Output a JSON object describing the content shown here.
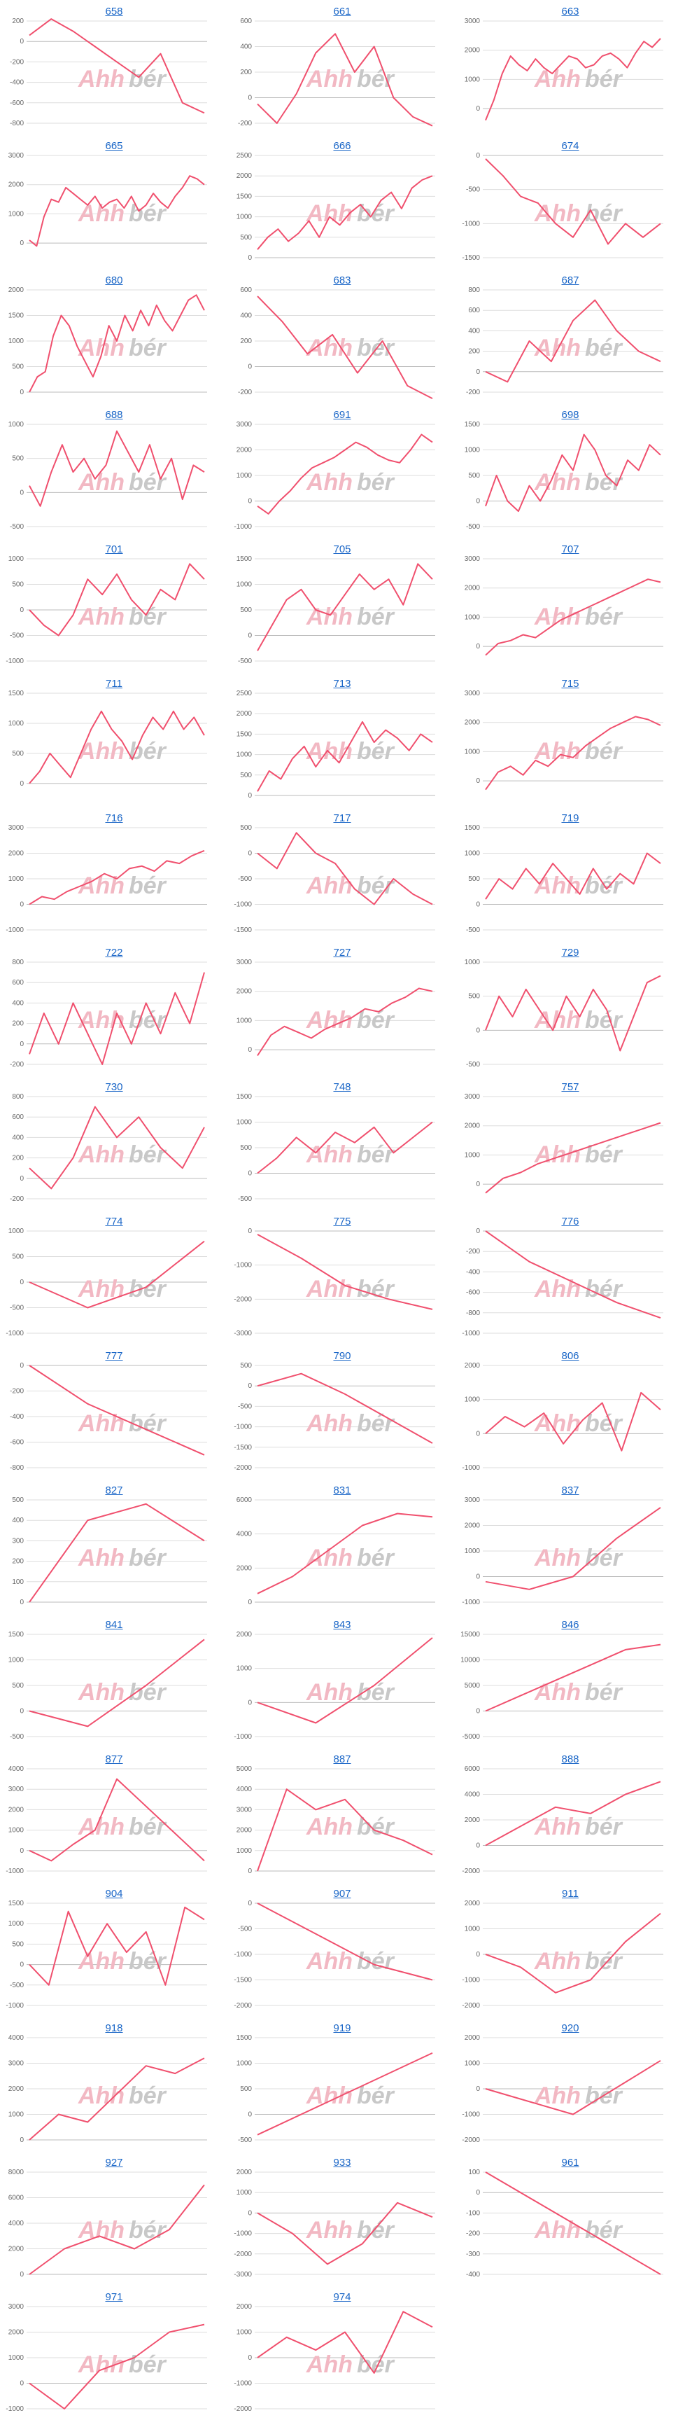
{
  "style": {
    "line_color": "#f0506e",
    "title_color": "#1a66c7",
    "grid_color": "#dddddd",
    "zero_color": "#bbbbbb",
    "watermark_left_color": "#f2b8c3",
    "watermark_right_color": "#c8c8c8"
  },
  "watermark": {
    "left": "Ahh",
    "right": "bér"
  },
  "chart_data": [
    {
      "type": "line",
      "title": "658",
      "yticks": [
        200,
        0,
        -200,
        -400,
        -600,
        -800
      ],
      "ylim": [
        -800,
        200
      ],
      "values": [
        60,
        220,
        100,
        -50,
        -200,
        -350,
        -120,
        -600,
        -700
      ]
    },
    {
      "type": "line",
      "title": "661",
      "yticks": [
        600,
        400,
        200,
        0,
        -200
      ],
      "ylim": [
        -200,
        600
      ],
      "values": [
        -50,
        -200,
        30,
        350,
        500,
        200,
        400,
        0,
        -150,
        -220
      ]
    },
    {
      "type": "line",
      "title": "663",
      "yticks": [
        3000,
        2000,
        1000,
        0
      ],
      "ylim": [
        -500,
        3000
      ],
      "values": [
        -400,
        300,
        1200,
        1800,
        1500,
        1300,
        1700,
        1400,
        1200,
        1500,
        1800,
        1700,
        1400,
        1500,
        1800,
        1900,
        1700,
        1400,
        1900,
        2300,
        2100,
        2400
      ]
    },
    {
      "type": "line",
      "title": "665",
      "yticks": [
        3000,
        2000,
        1000,
        0
      ],
      "ylim": [
        -500,
        3000
      ],
      "values": [
        100,
        -100,
        900,
        1500,
        1400,
        1900,
        1700,
        1500,
        1300,
        1600,
        1200,
        1400,
        1500,
        1200,
        1600,
        1100,
        1300,
        1700,
        1400,
        1200,
        1600,
        1900,
        2300,
        2200,
        2000
      ]
    },
    {
      "type": "line",
      "title": "666",
      "yticks": [
        2500,
        2000,
        1500,
        1000,
        500,
        0
      ],
      "ylim": [
        0,
        2500
      ],
      "values": [
        200,
        500,
        700,
        400,
        600,
        900,
        500,
        1000,
        800,
        1100,
        1300,
        1000,
        1400,
        1600,
        1200,
        1700,
        1900,
        2000
      ]
    },
    {
      "type": "line",
      "title": "674",
      "yticks": [
        0,
        -500,
        -1000,
        -1500
      ],
      "ylim": [
        -1500,
        0
      ],
      "values": [
        -50,
        -300,
        -600,
        -700,
        -1000,
        -1200,
        -800,
        -1300,
        -1000,
        -1200,
        -1000
      ]
    },
    {
      "type": "line",
      "title": "680",
      "yticks": [
        2000,
        1500,
        1000,
        500,
        0
      ],
      "ylim": [
        0,
        2000
      ],
      "values": [
        0,
        300,
        400,
        1100,
        1500,
        1300,
        900,
        600,
        300,
        700,
        1300,
        1000,
        1500,
        1200,
        1600,
        1300,
        1700,
        1400,
        1200,
        1500,
        1800,
        1900,
        1600
      ]
    },
    {
      "type": "line",
      "title": "683",
      "yticks": [
        600,
        400,
        200,
        0,
        -200
      ],
      "ylim": [
        -200,
        600
      ],
      "values": [
        550,
        350,
        100,
        250,
        -50,
        200,
        -150,
        -250
      ]
    },
    {
      "type": "line",
      "title": "687",
      "yticks": [
        800,
        600,
        400,
        200,
        0,
        -200
      ],
      "ylim": [
        -200,
        800
      ],
      "values": [
        0,
        -100,
        300,
        100,
        500,
        700,
        400,
        200,
        100
      ]
    },
    {
      "type": "line",
      "title": "688",
      "yticks": [
        1000,
        500,
        0,
        -500
      ],
      "ylim": [
        -500,
        1000
      ],
      "values": [
        100,
        -200,
        300,
        700,
        300,
        500,
        200,
        400,
        900,
        600,
        300,
        700,
        200,
        500,
        -100,
        400,
        300
      ]
    },
    {
      "type": "line",
      "title": "691",
      "yticks": [
        3000,
        2000,
        1000,
        0,
        -1000
      ],
      "ylim": [
        -1000,
        3000
      ],
      "values": [
        -200,
        -500,
        0,
        400,
        900,
        1300,
        1500,
        1700,
        2000,
        2300,
        2100,
        1800,
        1600,
        1500,
        2000,
        2600,
        2300
      ]
    },
    {
      "type": "line",
      "title": "698",
      "yticks": [
        1500,
        1000,
        500,
        0,
        -500
      ],
      "ylim": [
        -500,
        1500
      ],
      "values": [
        -100,
        500,
        0,
        -200,
        300,
        0,
        400,
        900,
        600,
        1300,
        1000,
        500,
        300,
        800,
        600,
        1100,
        900
      ]
    },
    {
      "type": "line",
      "title": "701",
      "yticks": [
        1000,
        500,
        0,
        -500,
        -1000
      ],
      "ylim": [
        -1000,
        1000
      ],
      "values": [
        0,
        -300,
        -500,
        -100,
        600,
        300,
        700,
        200,
        -100,
        400,
        200,
        900,
        600
      ]
    },
    {
      "type": "line",
      "title": "705",
      "yticks": [
        1500,
        1000,
        500,
        0,
        -500
      ],
      "ylim": [
        -500,
        1500
      ],
      "values": [
        -300,
        200,
        700,
        900,
        500,
        400,
        800,
        1200,
        900,
        1100,
        600,
        1400,
        1100
      ]
    },
    {
      "type": "line",
      "title": "707",
      "yticks": [
        3000,
        2000,
        1000,
        0
      ],
      "ylim": [
        -500,
        3000
      ],
      "values": [
        -300,
        100,
        200,
        400,
        300,
        600,
        900,
        1100,
        1300,
        1500,
        1700,
        1900,
        2100,
        2300,
        2200
      ]
    },
    {
      "type": "line",
      "title": "711",
      "yticks": [
        1500,
        1000,
        500,
        0
      ],
      "ylim": [
        -200,
        1500
      ],
      "values": [
        0,
        200,
        500,
        300,
        100,
        500,
        900,
        1200,
        900,
        700,
        400,
        800,
        1100,
        900,
        1200,
        900,
        1100,
        800
      ]
    },
    {
      "type": "line",
      "title": "713",
      "yticks": [
        2500,
        2000,
        1500,
        1000,
        500,
        0
      ],
      "ylim": [
        0,
        2500
      ],
      "values": [
        100,
        600,
        400,
        900,
        1200,
        700,
        1100,
        800,
        1300,
        1800,
        1300,
        1600,
        1400,
        1100,
        1500,
        1300
      ]
    },
    {
      "type": "line",
      "title": "715",
      "yticks": [
        3000,
        2000,
        1000,
        0
      ],
      "ylim": [
        -500,
        3000
      ],
      "values": [
        -300,
        300,
        500,
        200,
        700,
        500,
        900,
        800,
        1200,
        1500,
        1800,
        2000,
        2200,
        2100,
        1900
      ]
    },
    {
      "type": "line",
      "title": "716",
      "yticks": [
        3000,
        2000,
        1000,
        0,
        -1000
      ],
      "ylim": [
        -1000,
        3000
      ],
      "values": [
        0,
        300,
        200,
        500,
        700,
        900,
        1200,
        1000,
        1400,
        1500,
        1300,
        1700,
        1600,
        1900,
        2100
      ]
    },
    {
      "type": "line",
      "title": "717",
      "yticks": [
        500,
        0,
        -500,
        -1000,
        -1500
      ],
      "ylim": [
        -1500,
        500
      ],
      "values": [
        0,
        -300,
        400,
        0,
        -200,
        -700,
        -1000,
        -500,
        -800,
        -1000
      ]
    },
    {
      "type": "line",
      "title": "719",
      "yticks": [
        1500,
        1000,
        500,
        0,
        -500
      ],
      "ylim": [
        -500,
        1500
      ],
      "values": [
        100,
        500,
        300,
        700,
        400,
        800,
        500,
        200,
        700,
        300,
        600,
        400,
        1000,
        800
      ]
    },
    {
      "type": "line",
      "title": "722",
      "yticks": [
        800,
        600,
        400,
        200,
        0,
        -200
      ],
      "ylim": [
        -200,
        800
      ],
      "values": [
        -100,
        300,
        0,
        400,
        100,
        -200,
        300,
        0,
        400,
        100,
        500,
        200,
        700
      ]
    },
    {
      "type": "line",
      "title": "727",
      "yticks": [
        3000,
        2000,
        1000,
        0
      ],
      "ylim": [
        -500,
        3000
      ],
      "values": [
        -200,
        500,
        800,
        600,
        400,
        700,
        900,
        1100,
        1400,
        1300,
        1600,
        1800,
        2100,
        2000
      ]
    },
    {
      "type": "line",
      "title": "729",
      "yticks": [
        1000,
        500,
        0,
        -500
      ],
      "ylim": [
        -500,
        1000
      ],
      "values": [
        0,
        500,
        200,
        600,
        300,
        0,
        500,
        200,
        600,
        300,
        -300,
        200,
        700,
        800
      ]
    },
    {
      "type": "line",
      "title": "730",
      "yticks": [
        800,
        600,
        400,
        200,
        0,
        -200
      ],
      "ylim": [
        -200,
        800
      ],
      "values": [
        100,
        -100,
        200,
        700,
        400,
        600,
        300,
        100,
        500
      ]
    },
    {
      "type": "line",
      "title": "748",
      "yticks": [
        1500,
        1000,
        500,
        0,
        -500
      ],
      "ylim": [
        -500,
        1500
      ],
      "values": [
        0,
        300,
        700,
        400,
        800,
        600,
        900,
        400,
        700,
        1000
      ]
    },
    {
      "type": "line",
      "title": "757",
      "yticks": [
        3000,
        2000,
        1000,
        0
      ],
      "ylim": [
        -500,
        3000
      ],
      "values": [
        -300,
        200,
        400,
        700,
        900,
        1100,
        1300,
        1500,
        1700,
        1900,
        2100
      ]
    },
    {
      "type": "line",
      "title": "774",
      "yticks": [
        1000,
        500,
        0,
        -500,
        -1000
      ],
      "ylim": [
        -1000,
        1000
      ],
      "values": [
        0,
        -500,
        -100,
        800
      ]
    },
    {
      "type": "line",
      "title": "775",
      "yticks": [
        0,
        -1000,
        -2000,
        -3000
      ],
      "ylim": [
        -3000,
        0
      ],
      "values": [
        -100,
        -800,
        -1600,
        -2000,
        -2300
      ]
    },
    {
      "type": "line",
      "title": "776",
      "yticks": [
        0,
        -200,
        -400,
        -600,
        -800,
        -1000
      ],
      "ylim": [
        -1000,
        0
      ],
      "values": [
        0,
        -300,
        -500,
        -700,
        -850
      ]
    },
    {
      "type": "line",
      "title": "777",
      "yticks": [
        0,
        -200,
        -400,
        -600,
        -800
      ],
      "ylim": [
        -800,
        0
      ],
      "values": [
        0,
        -300,
        -500,
        -700
      ]
    },
    {
      "type": "line",
      "title": "790",
      "yticks": [
        500,
        0,
        -500,
        -1000,
        -1500,
        -2000
      ],
      "ylim": [
        -2000,
        500
      ],
      "values": [
        0,
        300,
        -200,
        -800,
        -1400
      ]
    },
    {
      "type": "line",
      "title": "806",
      "yticks": [
        2000,
        1000,
        0,
        -1000
      ],
      "ylim": [
        -1000,
        2000
      ],
      "values": [
        0,
        500,
        200,
        600,
        -300,
        400,
        900,
        -500,
        1200,
        700
      ]
    },
    {
      "type": "line",
      "title": "827",
      "yticks": [
        500,
        400,
        300,
        200,
        100,
        0
      ],
      "ylim": [
        0,
        500
      ],
      "values": [
        0,
        400,
        480,
        300
      ]
    },
    {
      "type": "line",
      "title": "831",
      "yticks": [
        6000,
        4000,
        2000,
        0
      ],
      "ylim": [
        0,
        6000
      ],
      "values": [
        500,
        1500,
        3000,
        4500,
        5200,
        5000
      ]
    },
    {
      "type": "line",
      "title": "837",
      "yticks": [
        3000,
        2000,
        1000,
        0,
        -1000
      ],
      "ylim": [
        -1000,
        3000
      ],
      "values": [
        -200,
        -500,
        0,
        1500,
        2700
      ]
    },
    {
      "type": "line",
      "title": "841",
      "yticks": [
        1500,
        1000,
        500,
        0,
        -500
      ],
      "ylim": [
        -500,
        1500
      ],
      "values": [
        0,
        -300,
        500,
        1400
      ]
    },
    {
      "type": "line",
      "title": "843",
      "yticks": [
        2000,
        1000,
        0,
        -1000
      ],
      "ylim": [
        -1000,
        2000
      ],
      "values": [
        0,
        -600,
        500,
        1900
      ]
    },
    {
      "type": "line",
      "title": "846",
      "yticks": [
        15000,
        10000,
        5000,
        0,
        -5000
      ],
      "ylim": [
        -5000,
        15000
      ],
      "values": [
        0,
        3000,
        6000,
        9000,
        12000,
        13000
      ]
    },
    {
      "type": "line",
      "title": "877",
      "yticks": [
        4000,
        3000,
        2000,
        1000,
        0,
        -1000
      ],
      "ylim": [
        -1000,
        4000
      ],
      "values": [
        0,
        -500,
        300,
        1000,
        3500,
        2500,
        1500,
        500,
        -500
      ]
    },
    {
      "type": "line",
      "title": "887",
      "yticks": [
        5000,
        4000,
        3000,
        2000,
        1000,
        0
      ],
      "ylim": [
        0,
        5000
      ],
      "values": [
        0,
        4000,
        3000,
        3500,
        2000,
        1500,
        800
      ]
    },
    {
      "type": "line",
      "title": "888",
      "yticks": [
        6000,
        4000,
        2000,
        0,
        -2000
      ],
      "ylim": [
        -2000,
        6000
      ],
      "values": [
        0,
        1500,
        3000,
        2500,
        4000,
        5000
      ]
    },
    {
      "type": "line",
      "title": "904",
      "yticks": [
        1500,
        1000,
        500,
        0,
        -500,
        -1000
      ],
      "ylim": [
        -1000,
        1500
      ],
      "values": [
        0,
        -500,
        1300,
        200,
        1000,
        300,
        800,
        -500,
        1400,
        1100
      ]
    },
    {
      "type": "line",
      "title": "907",
      "yticks": [
        0,
        -500,
        -1000,
        -1500,
        -2000
      ],
      "ylim": [
        -2000,
        0
      ],
      "values": [
        0,
        -600,
        -1200,
        -1500
      ]
    },
    {
      "type": "line",
      "title": "911",
      "yticks": [
        2000,
        1000,
        0,
        -1000,
        -2000
      ],
      "ylim": [
        -2000,
        2000
      ],
      "values": [
        0,
        -500,
        -1500,
        -1000,
        500,
        1600
      ]
    },
    {
      "type": "line",
      "title": "918",
      "yticks": [
        4000,
        3000,
        2000,
        1000,
        0
      ],
      "ylim": [
        0,
        4000
      ],
      "values": [
        0,
        1000,
        700,
        1800,
        2900,
        2600,
        3200
      ]
    },
    {
      "type": "line",
      "title": "919",
      "yticks": [
        1500,
        1000,
        500,
        0,
        -500
      ],
      "ylim": [
        -500,
        1500
      ],
      "values": [
        -400,
        1200
      ]
    },
    {
      "type": "line",
      "title": "920",
      "yticks": [
        2000,
        1000,
        0,
        -1000,
        -2000
      ],
      "ylim": [
        -2000,
        2000
      ],
      "values": [
        0,
        -1000,
        1100
      ]
    },
    {
      "type": "line",
      "title": "927",
      "yticks": [
        8000,
        6000,
        4000,
        2000,
        0
      ],
      "ylim": [
        0,
        8000
      ],
      "values": [
        0,
        2000,
        3000,
        2000,
        3500,
        7000
      ]
    },
    {
      "type": "line",
      "title": "933",
      "yticks": [
        2000,
        1000,
        0,
        -1000,
        -2000,
        -3000
      ],
      "ylim": [
        -3000,
        2000
      ],
      "values": [
        0,
        -1000,
        -2500,
        -1500,
        500,
        -200
      ]
    },
    {
      "type": "line",
      "title": "961",
      "yticks": [
        100,
        0,
        -100,
        -200,
        -300,
        -400
      ],
      "ylim": [
        -400,
        100
      ],
      "values": [
        100,
        -400
      ]
    },
    {
      "type": "line",
      "title": "971",
      "yticks": [
        3000,
        2000,
        1000,
        0,
        -1000
      ],
      "ylim": [
        -1000,
        3000
      ],
      "values": [
        0,
        -1000,
        500,
        1000,
        2000,
        2300
      ]
    },
    {
      "type": "line",
      "title": "974",
      "yticks": [
        2000,
        1000,
        0,
        -1000,
        -2000
      ],
      "ylim": [
        -2000,
        2000
      ],
      "values": [
        0,
        800,
        300,
        1000,
        -600,
        1800,
        1200
      ]
    }
  ]
}
